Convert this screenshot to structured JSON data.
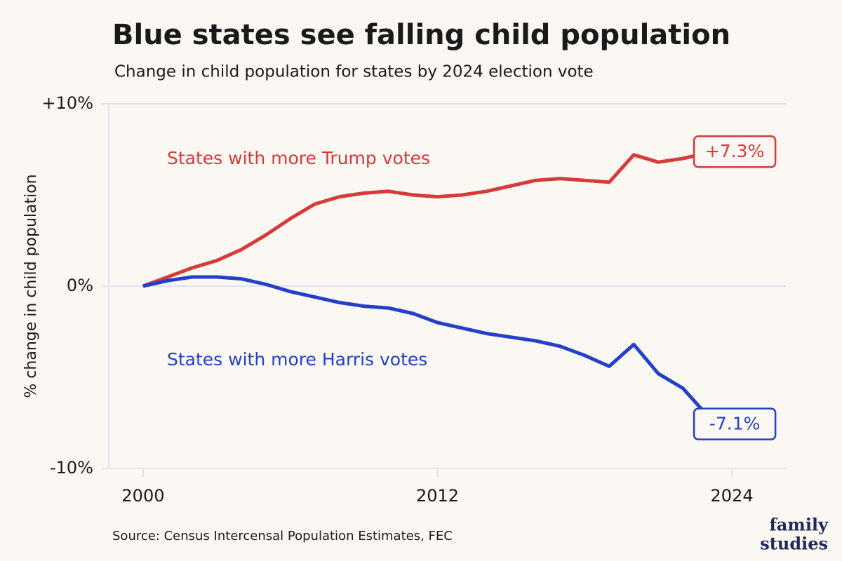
{
  "chart_data": {
    "type": "line",
    "title": "Blue states see falling child population",
    "subtitle": "Change in child population for states by 2024 election vote",
    "y_label": "% change in child population",
    "source": "Source: Census Intercensal Population Estimates, FEC",
    "logo": [
      "family",
      "studies"
    ],
    "x": [
      2000,
      2001,
      2002,
      2003,
      2004,
      2005,
      2006,
      2007,
      2008,
      2009,
      2010,
      2011,
      2012,
      2013,
      2014,
      2015,
      2016,
      2017,
      2018,
      2019,
      2020,
      2021,
      2022,
      2023
    ],
    "series": [
      {
        "name": "States with more Trump votes",
        "color": "#d63a3a",
        "values": [
          0,
          0.5,
          1.0,
          1.4,
          2.0,
          2.8,
          3.7,
          4.5,
          4.9,
          5.1,
          5.2,
          5.0,
          4.9,
          5.0,
          5.2,
          5.5,
          5.8,
          5.9,
          5.8,
          5.7,
          7.2,
          6.8,
          7.0,
          7.3
        ],
        "value_labels": [
          null,
          null,
          null,
          null,
          null,
          null,
          null,
          null,
          null,
          null,
          null,
          null,
          null,
          null,
          null,
          null,
          null,
          null,
          null,
          null,
          null,
          null,
          null,
          "+7.3%"
        ]
      },
      {
        "name": "States with more Harris votes",
        "color": "#2340c8",
        "values": [
          0,
          0.3,
          0.5,
          0.5,
          0.4,
          0.1,
          -0.3,
          -0.6,
          -0.9,
          -1.1,
          -1.2,
          -1.5,
          -2.0,
          -2.3,
          -2.6,
          -2.8,
          -3.0,
          -3.3,
          -3.8,
          -4.4,
          -3.2,
          -4.8,
          -5.6,
          -7.1
        ],
        "value_labels": [
          null,
          null,
          null,
          null,
          null,
          null,
          null,
          null,
          null,
          null,
          null,
          null,
          null,
          null,
          null,
          null,
          null,
          null,
          null,
          null,
          null,
          null,
          null,
          "-7.1%"
        ]
      }
    ],
    "xlim": [
      1998.6,
      2026.2
    ],
    "xticks": [
      2000,
      2012,
      2024
    ],
    "ylim": [
      -10,
      10
    ],
    "yticks": [
      {
        "value": 10,
        "label": "+10%"
      },
      {
        "value": 0,
        "label": "0%"
      },
      {
        "value": -10,
        "label": "-10%"
      }
    ],
    "grid": true
  }
}
